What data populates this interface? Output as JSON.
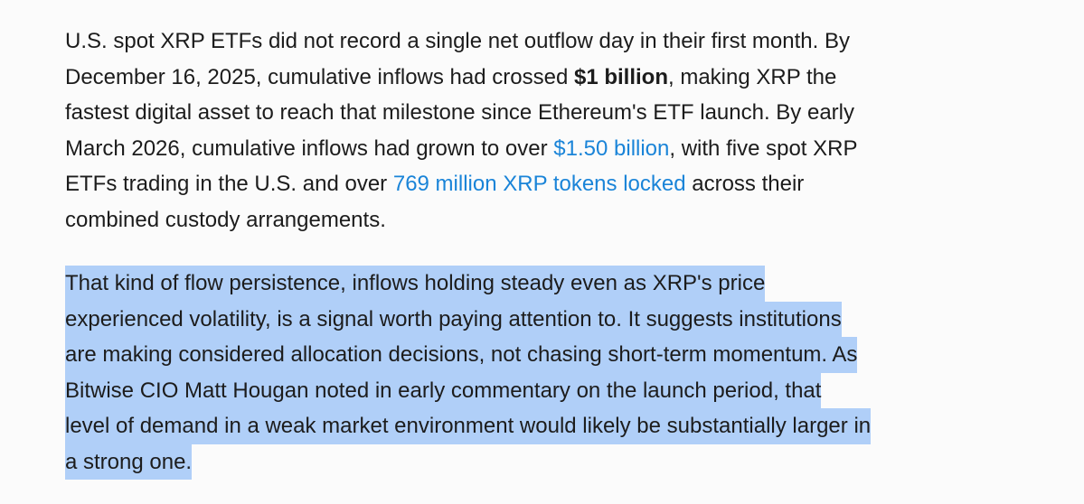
{
  "paragraphs": [
    {
      "highlight": false,
      "lines": [
        [
          {
            "text": "U.S. spot XRP ETFs did not record a single net outflow day in their first month. By"
          }
        ],
        [
          {
            "text": "December 16, 2025, cumulative inflows had crossed "
          },
          {
            "text": "$1 billion",
            "style": "bold"
          },
          {
            "text": ", making XRP the"
          }
        ],
        [
          {
            "text": "fastest digital asset to reach that milestone since Ethereum's ETF launch. By early"
          }
        ],
        [
          {
            "text": "March 2026, cumulative inflows had grown to over "
          },
          {
            "text": "$1.50 billion",
            "style": "link"
          },
          {
            "text": ", with five spot XRP"
          }
        ],
        [
          {
            "text": "ETFs trading in the U.S. and over "
          },
          {
            "text": "769 million XRP tokens locked",
            "style": "link"
          },
          {
            "text": " across their"
          }
        ],
        [
          {
            "text": "combined custody arrangements."
          }
        ]
      ]
    },
    {
      "highlight": true,
      "lines": [
        [
          {
            "text": "That kind of flow persistence, inflows holding steady even as XRP's price"
          }
        ],
        [
          {
            "text": "experienced volatility, is a signal worth paying attention to. It suggests institutions"
          }
        ],
        [
          {
            "text": "are making considered allocation decisions, not chasing short-term momentum. As"
          }
        ],
        [
          {
            "text": "Bitwise CIO Matt Hougan noted in early commentary on the launch period, that"
          }
        ],
        [
          {
            "text": "level of demand in a weak market environment would likely be substantially larger in"
          }
        ],
        [
          {
            "text": "a strong one."
          }
        ]
      ]
    }
  ]
}
